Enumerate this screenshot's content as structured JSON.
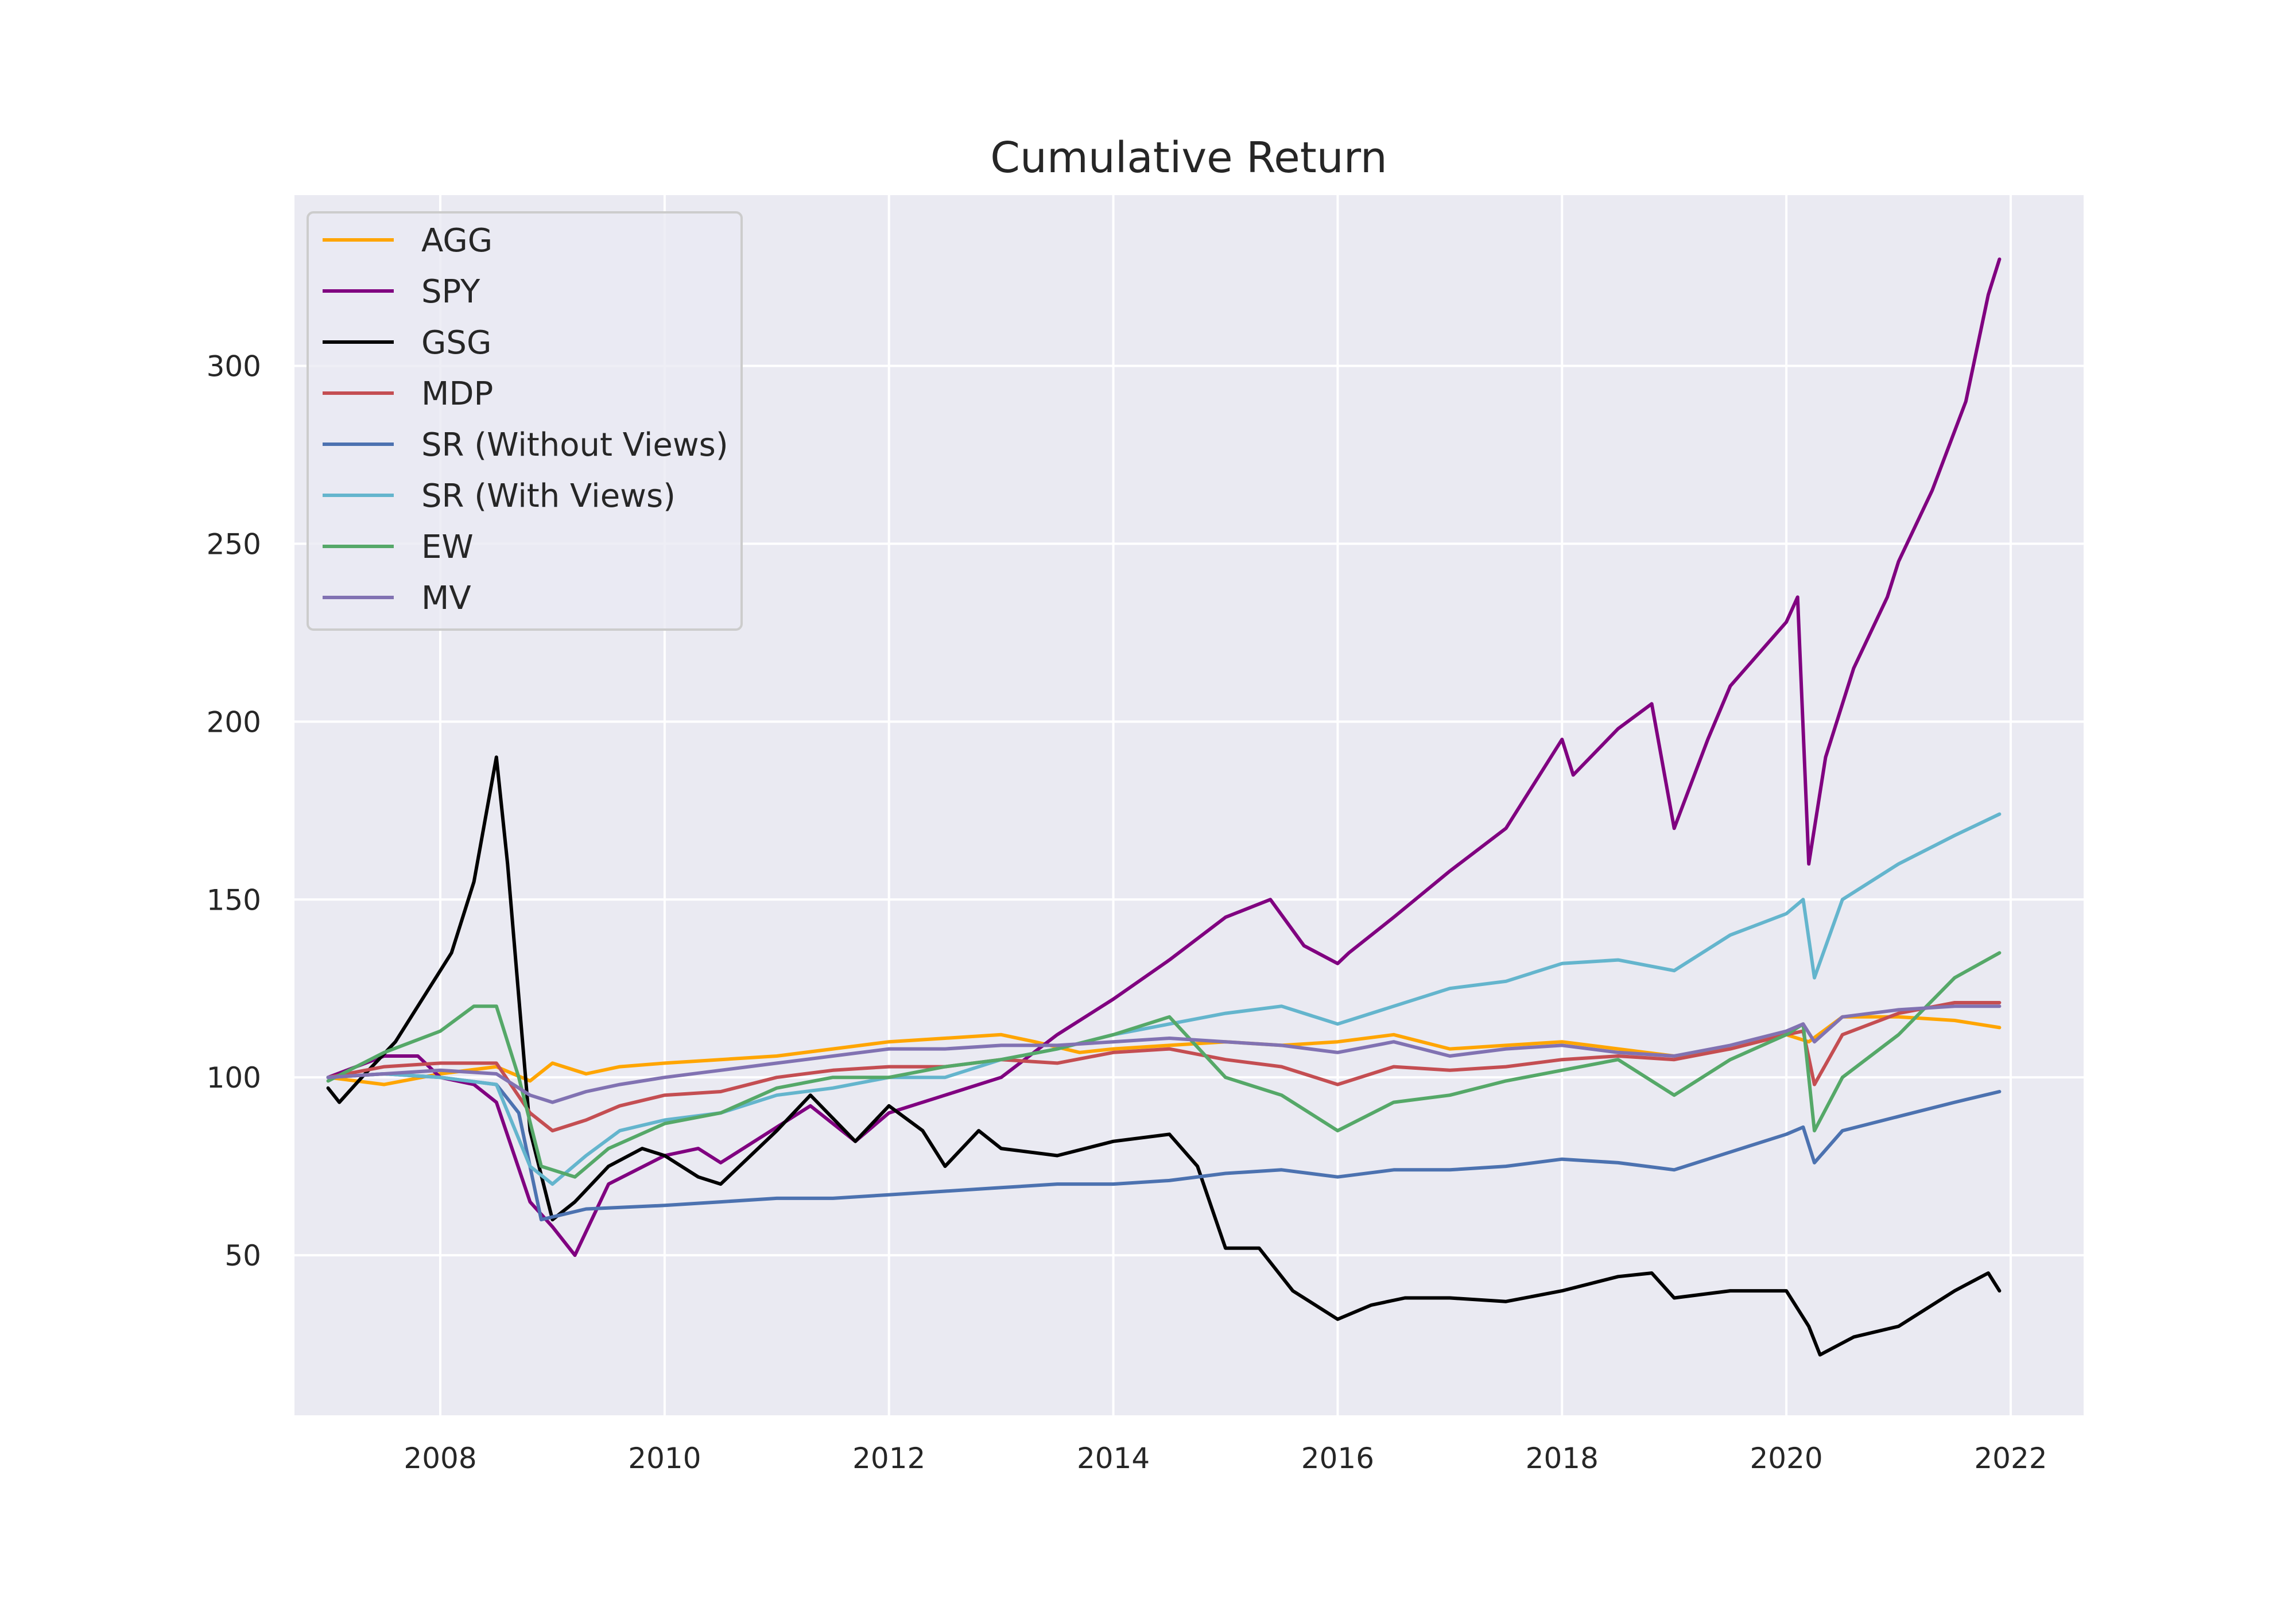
{
  "chart_data": {
    "type": "line",
    "title": "Cumulative Return",
    "xlabel": "",
    "ylabel": "",
    "xlim": [
      2006.7,
      2022.65
    ],
    "ylim": [
      5,
      348
    ],
    "x_ticks": [
      2008,
      2010,
      2012,
      2014,
      2016,
      2018,
      2020,
      2022
    ],
    "x_tick_labels": [
      "2008",
      "2010",
      "2012",
      "2014",
      "2016",
      "2018",
      "2020",
      "2022"
    ],
    "y_ticks": [
      50,
      100,
      150,
      200,
      250,
      300
    ],
    "y_tick_labels": [
      "50",
      "100",
      "150",
      "200",
      "250",
      "300"
    ],
    "grid": true,
    "legend_position": "upper left",
    "background_color": "#EAEAF2",
    "grid_color": "#FFFFFF",
    "series": [
      {
        "name": "AGG",
        "color": "#FFA500",
        "x": [
          2007.0,
          2007.5,
          2008.0,
          2008.5,
          2008.8,
          2009.0,
          2009.3,
          2009.6,
          2010.0,
          2010.5,
          2011.0,
          2011.5,
          2012.0,
          2012.5,
          2013.0,
          2013.3,
          2013.7,
          2014.0,
          2014.5,
          2015.0,
          2015.5,
          2016.0,
          2016.5,
          2017.0,
          2017.5,
          2018.0,
          2018.5,
          2019.0,
          2019.5,
          2020.0,
          2020.2,
          2020.5,
          2021.0,
          2021.5,
          2021.9
        ],
        "values": [
          100,
          98,
          101,
          103,
          99,
          104,
          101,
          103,
          104,
          105,
          106,
          108,
          110,
          111,
          112,
          110,
          107,
          108,
          109,
          110,
          109,
          110,
          112,
          108,
          109,
          110,
          108,
          106,
          108,
          112,
          110,
          117,
          117,
          116,
          114
        ]
      },
      {
        "name": "SPY",
        "color": "#800080",
        "x": [
          2007.0,
          2007.5,
          2007.8,
          2008.0,
          2008.3,
          2008.5,
          2008.8,
          2009.0,
          2009.2,
          2009.5,
          2010.0,
          2010.3,
          2010.5,
          2011.0,
          2011.3,
          2011.7,
          2012.0,
          2012.5,
          2013.0,
          2013.5,
          2014.0,
          2014.5,
          2015.0,
          2015.4,
          2015.7,
          2016.0,
          2016.1,
          2016.5,
          2017.0,
          2017.5,
          2018.0,
          2018.1,
          2018.5,
          2018.8,
          2019.0,
          2019.3,
          2019.5,
          2020.0,
          2020.1,
          2020.2,
          2020.35,
          2020.6,
          2020.9,
          2021.0,
          2021.3,
          2021.6,
          2021.8,
          2021.9
        ],
        "values": [
          100,
          106,
          106,
          100,
          98,
          93,
          65,
          58,
          50,
          70,
          78,
          80,
          76,
          86,
          92,
          82,
          90,
          95,
          100,
          112,
          122,
          133,
          145,
          150,
          137,
          132,
          135,
          145,
          158,
          170,
          195,
          185,
          198,
          205,
          170,
          195,
          210,
          228,
          235,
          160,
          190,
          215,
          235,
          245,
          265,
          290,
          320,
          330
        ]
      },
      {
        "name": "GSG",
        "color": "#000000",
        "x": [
          2007.0,
          2007.1,
          2007.3,
          2007.6,
          2007.9,
          2008.1,
          2008.3,
          2008.5,
          2008.6,
          2008.8,
          2009.0,
          2009.2,
          2009.5,
          2009.8,
          2010.0,
          2010.3,
          2010.5,
          2011.0,
          2011.3,
          2011.7,
          2012.0,
          2012.3,
          2012.5,
          2012.8,
          2013.0,
          2013.5,
          2014.0,
          2014.5,
          2014.75,
          2015.0,
          2015.3,
          2015.6,
          2016.0,
          2016.3,
          2016.6,
          2017.0,
          2017.5,
          2018.0,
          2018.5,
          2018.8,
          2019.0,
          2019.5,
          2020.0,
          2020.2,
          2020.3,
          2020.6,
          2021.0,
          2021.5,
          2021.8,
          2021.9
        ],
        "values": [
          97,
          93,
          100,
          110,
          125,
          135,
          155,
          190,
          160,
          85,
          60,
          65,
          75,
          80,
          78,
          72,
          70,
          85,
          95,
          82,
          92,
          85,
          75,
          85,
          80,
          78,
          82,
          84,
          75,
          52,
          52,
          40,
          32,
          36,
          38,
          38,
          37,
          40,
          44,
          45,
          38,
          40,
          40,
          30,
          22,
          27,
          30,
          40,
          45,
          40
        ]
      },
      {
        "name": "MDP",
        "color": "#C44E52",
        "x": [
          2007.0,
          2007.5,
          2008.0,
          2008.5,
          2008.8,
          2009.0,
          2009.3,
          2009.6,
          2010.0,
          2010.5,
          2011.0,
          2011.5,
          2012.0,
          2012.5,
          2013.0,
          2013.5,
          2014.0,
          2014.5,
          2015.0,
          2015.5,
          2016.0,
          2016.5,
          2017.0,
          2017.5,
          2018.0,
          2018.5,
          2019.0,
          2019.5,
          2020.0,
          2020.15,
          2020.25,
          2020.5,
          2021.0,
          2021.5,
          2021.9
        ],
        "values": [
          100,
          103,
          104,
          104,
          90,
          85,
          88,
          92,
          95,
          96,
          100,
          102,
          103,
          103,
          105,
          104,
          107,
          108,
          105,
          103,
          98,
          103,
          102,
          103,
          105,
          106,
          105,
          108,
          112,
          113,
          98,
          112,
          118,
          121,
          121
        ]
      },
      {
        "name": "SR (Without Views)",
        "color": "#4C72B0",
        "x": [
          2007.0,
          2007.5,
          2008.0,
          2008.5,
          2008.7,
          2008.9,
          2009.3,
          2010.0,
          2010.5,
          2011.0,
          2011.5,
          2012.0,
          2012.5,
          2013.0,
          2013.5,
          2014.0,
          2014.5,
          2015.0,
          2015.5,
          2016.0,
          2016.5,
          2017.0,
          2017.5,
          2018.0,
          2018.5,
          2019.0,
          2019.5,
          2020.0,
          2020.15,
          2020.25,
          2020.5,
          2021.0,
          2021.5,
          2021.9
        ],
        "values": [
          100,
          101,
          100,
          98,
          90,
          60,
          63,
          64,
          65,
          66,
          66,
          67,
          68,
          69,
          70,
          70,
          71,
          73,
          74,
          72,
          74,
          74,
          75,
          77,
          76,
          74,
          79,
          84,
          86,
          76,
          85,
          89,
          93,
          96
        ]
      },
      {
        "name": "SR (With Views)",
        "color": "#64B5CD",
        "x": [
          2007.0,
          2007.5,
          2008.0,
          2008.5,
          2008.8,
          2009.0,
          2009.3,
          2009.6,
          2010.0,
          2010.5,
          2011.0,
          2011.5,
          2012.0,
          2012.5,
          2013.0,
          2013.5,
          2014.0,
          2014.5,
          2015.0,
          2015.5,
          2016.0,
          2016.5,
          2017.0,
          2017.5,
          2018.0,
          2018.5,
          2019.0,
          2019.5,
          2020.0,
          2020.15,
          2020.25,
          2020.5,
          2021.0,
          2021.5,
          2021.9
        ],
        "values": [
          100,
          101,
          100,
          98,
          75,
          70,
          78,
          85,
          88,
          90,
          95,
          97,
          100,
          100,
          105,
          108,
          112,
          115,
          118,
          120,
          115,
          120,
          125,
          127,
          132,
          133,
          130,
          140,
          146,
          150,
          128,
          150,
          160,
          168,
          174
        ]
      },
      {
        "name": "EW",
        "color": "#55A868",
        "x": [
          2007.0,
          2007.5,
          2008.0,
          2008.3,
          2008.5,
          2008.7,
          2008.9,
          2009.2,
          2009.5,
          2010.0,
          2010.5,
          2011.0,
          2011.5,
          2012.0,
          2012.5,
          2013.0,
          2013.5,
          2014.0,
          2014.5,
          2015.0,
          2015.5,
          2016.0,
          2016.5,
          2017.0,
          2017.5,
          2018.0,
          2018.5,
          2019.0,
          2019.5,
          2020.0,
          2020.15,
          2020.25,
          2020.5,
          2021.0,
          2021.5,
          2021.9
        ],
        "values": [
          99,
          107,
          113,
          120,
          120,
          100,
          75,
          72,
          80,
          87,
          90,
          97,
          100,
          100,
          103,
          105,
          108,
          112,
          117,
          100,
          95,
          85,
          93,
          95,
          99,
          102,
          105,
          95,
          105,
          112,
          115,
          85,
          100,
          112,
          128,
          135
        ]
      },
      {
        "name": "MV",
        "color": "#8172B2",
        "x": [
          2007.0,
          2007.5,
          2008.0,
          2008.5,
          2008.8,
          2009.0,
          2009.3,
          2009.6,
          2010.0,
          2010.5,
          2011.0,
          2011.5,
          2012.0,
          2012.5,
          2013.0,
          2013.5,
          2014.0,
          2014.5,
          2015.0,
          2015.5,
          2016.0,
          2016.5,
          2017.0,
          2017.5,
          2018.0,
          2018.5,
          2019.0,
          2019.5,
          2020.0,
          2020.15,
          2020.25,
          2020.5,
          2021.0,
          2021.5,
          2021.9
        ],
        "values": [
          100,
          101,
          102,
          101,
          95,
          93,
          96,
          98,
          100,
          102,
          104,
          106,
          108,
          108,
          109,
          109,
          110,
          111,
          110,
          109,
          107,
          110,
          106,
          108,
          109,
          107,
          106,
          109,
          113,
          115,
          110,
          117,
          119,
          120,
          120
        ]
      }
    ]
  }
}
